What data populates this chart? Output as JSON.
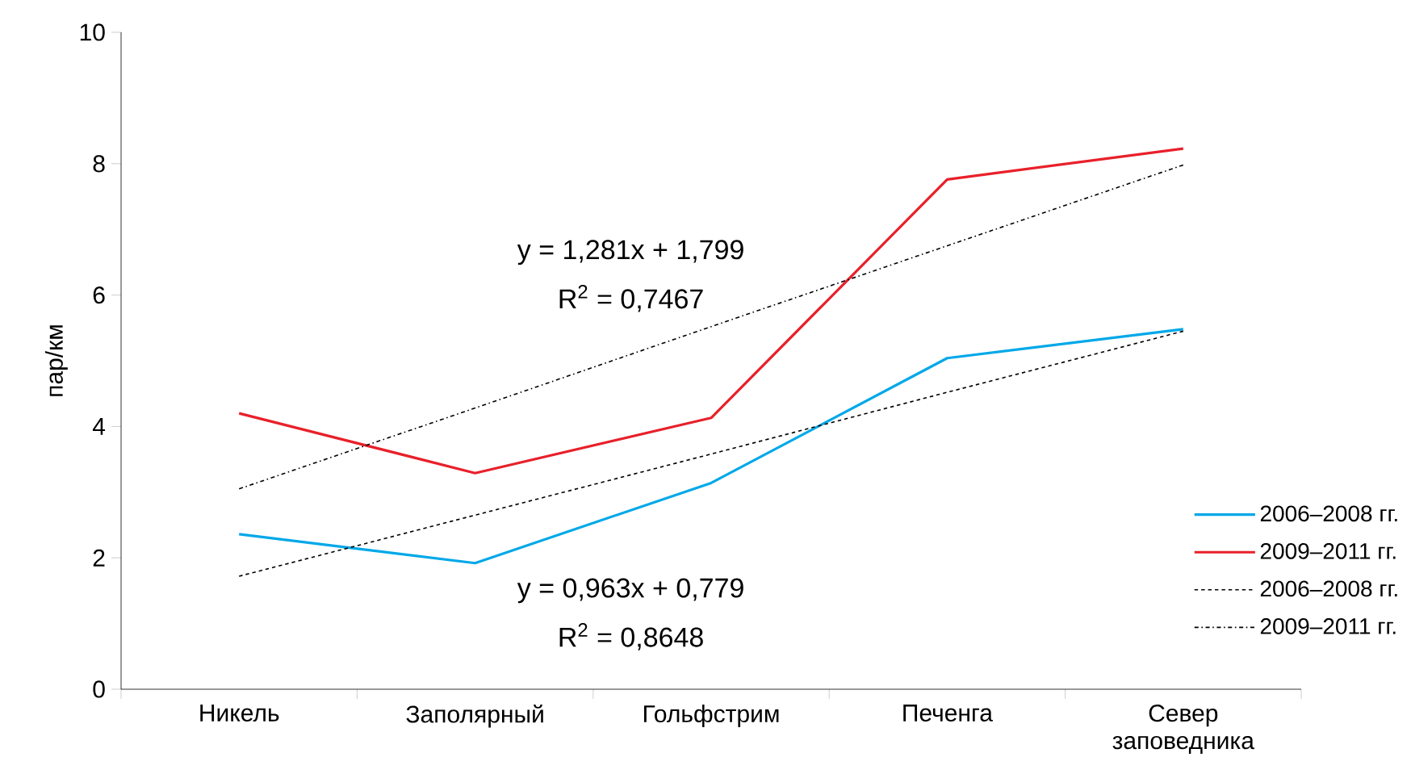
{
  "chart_data": {
    "type": "line",
    "ylabel": "пар/км",
    "categories": [
      "Никель",
      "Заполярный",
      "Гольфстрим",
      "Печенга",
      "Север заповедника"
    ],
    "series": [
      {
        "name": "2006–2008 гг.",
        "color": "#00a8e8",
        "values": [
          2.36,
          1.92,
          3.14,
          5.04,
          5.48
        ],
        "line_style": "solid"
      },
      {
        "name": "2009–2011 гг.",
        "color": "#e8202a",
        "values": [
          4.2,
          3.29,
          4.13,
          7.76,
          8.23
        ],
        "line_style": "solid"
      },
      {
        "name": "2006–2008 гг.",
        "color": "#000000",
        "values": [
          1.72,
          2.65,
          3.58,
          4.52,
          5.45
        ],
        "line_style": "dashed"
      },
      {
        "name": "2009–2011 гг.",
        "color": "#000000",
        "values": [
          3.05,
          4.28,
          5.52,
          6.75,
          7.98
        ],
        "line_style": "dashdot"
      }
    ],
    "ylim": [
      0,
      10
    ],
    "yticks": [
      0,
      2,
      4,
      6,
      8,
      10
    ],
    "annotations": [
      "y = 1,281x + 1,799",
      "R$^{2}$ = 0,7467",
      "y = 0,963x + 0,779",
      "R$^{2}$ = 0,8648"
    ],
    "legend": "bottom right",
    "grid": false,
    "marker": "none"
  }
}
